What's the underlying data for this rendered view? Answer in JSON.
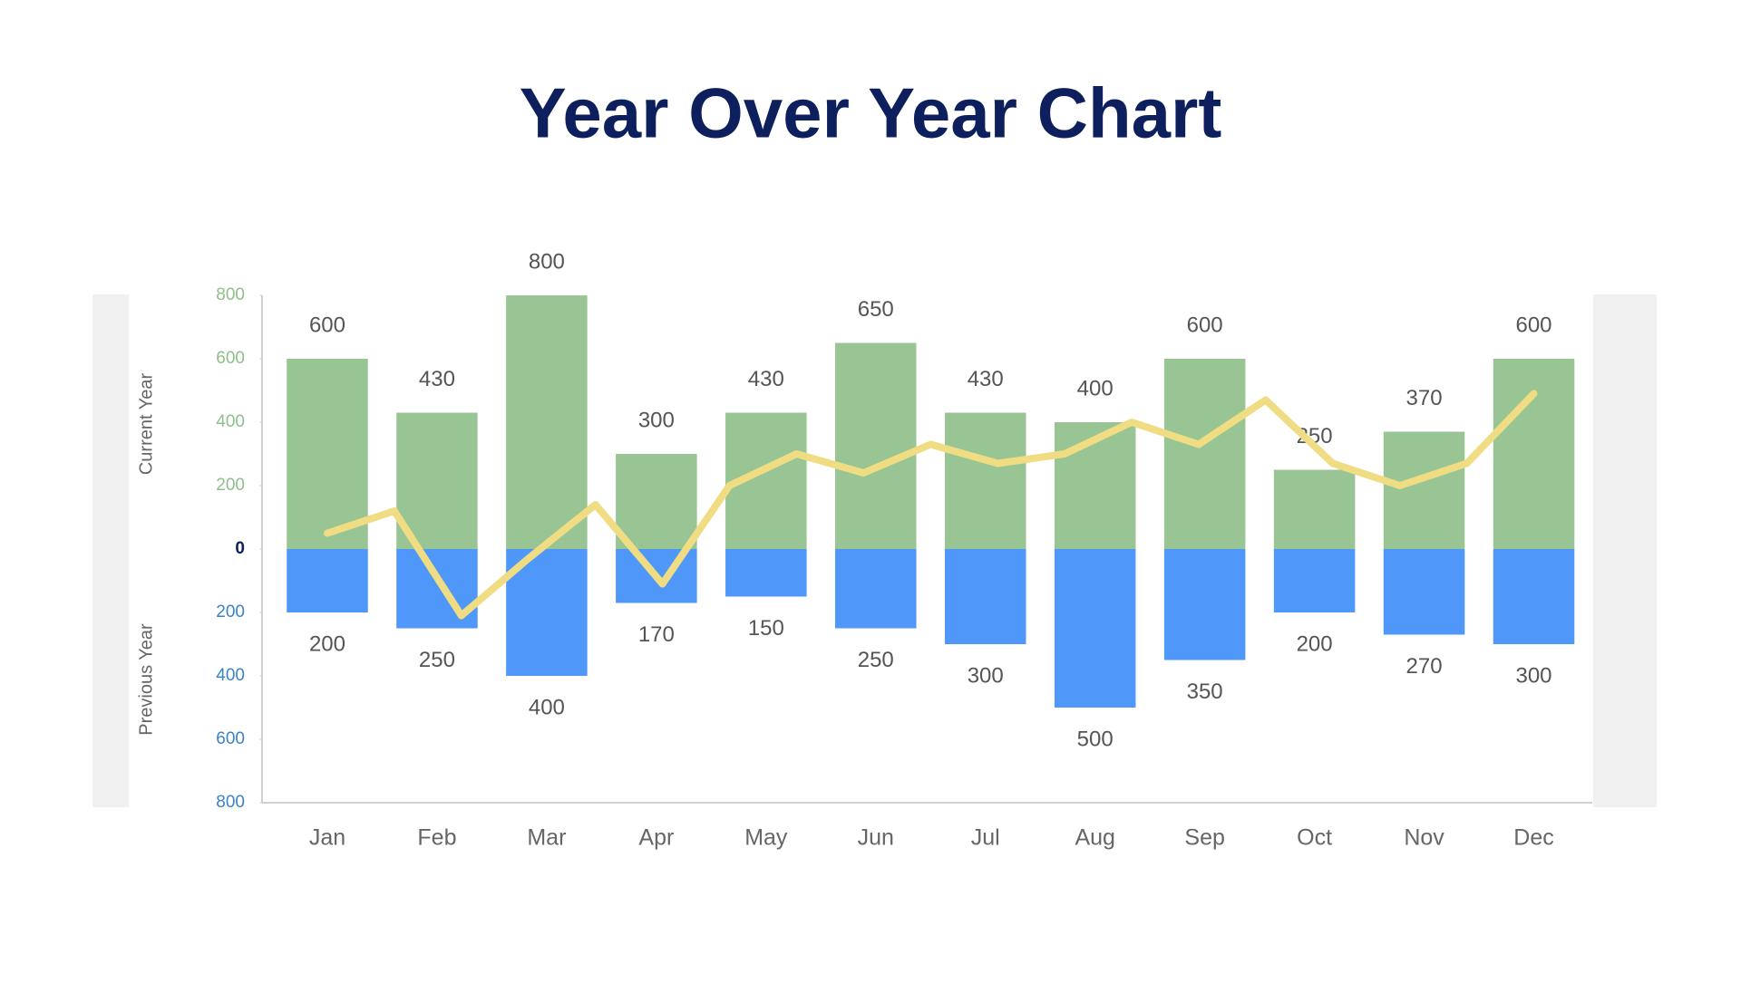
{
  "chart_data": {
    "type": "bar",
    "title": "Year Over Year Chart",
    "categories": [
      "Jan",
      "Feb",
      "Mar",
      "Apr",
      "May",
      "Jun",
      "Jul",
      "Aug",
      "Sep",
      "Oct",
      "Nov",
      "Dec"
    ],
    "series": [
      {
        "name": "Current Year",
        "color": "#98c593",
        "values": [
          600,
          430,
          800,
          300,
          430,
          650,
          430,
          400,
          600,
          250,
          370,
          600
        ]
      },
      {
        "name": "Previous Year",
        "color": "#4f97f9",
        "values": [
          -200,
          -250,
          -400,
          -170,
          -150,
          -250,
          -300,
          -500,
          -350,
          -200,
          -270,
          -300
        ],
        "value_labels": [
          "200",
          "250",
          "400",
          "170",
          "150",
          "250",
          "300",
          "500",
          "350",
          "200",
          "270",
          "300"
        ]
      }
    ],
    "trend": {
      "color": "#f0dc82",
      "values": [
        50,
        120,
        -210,
        -30,
        140,
        -110,
        200,
        300,
        240,
        330,
        270,
        300,
        400,
        330,
        470,
        270,
        200,
        270,
        490
      ]
    },
    "ylim": [
      -800,
      800
    ],
    "yticks": [
      {
        "value": -800,
        "label": "800"
      },
      {
        "value": -600,
        "label": "600"
      },
      {
        "value": -400,
        "label": "400"
      },
      {
        "value": -200,
        "label": "200"
      },
      0,
      200,
      400,
      600,
      800
    ],
    "grid": false
  }
}
